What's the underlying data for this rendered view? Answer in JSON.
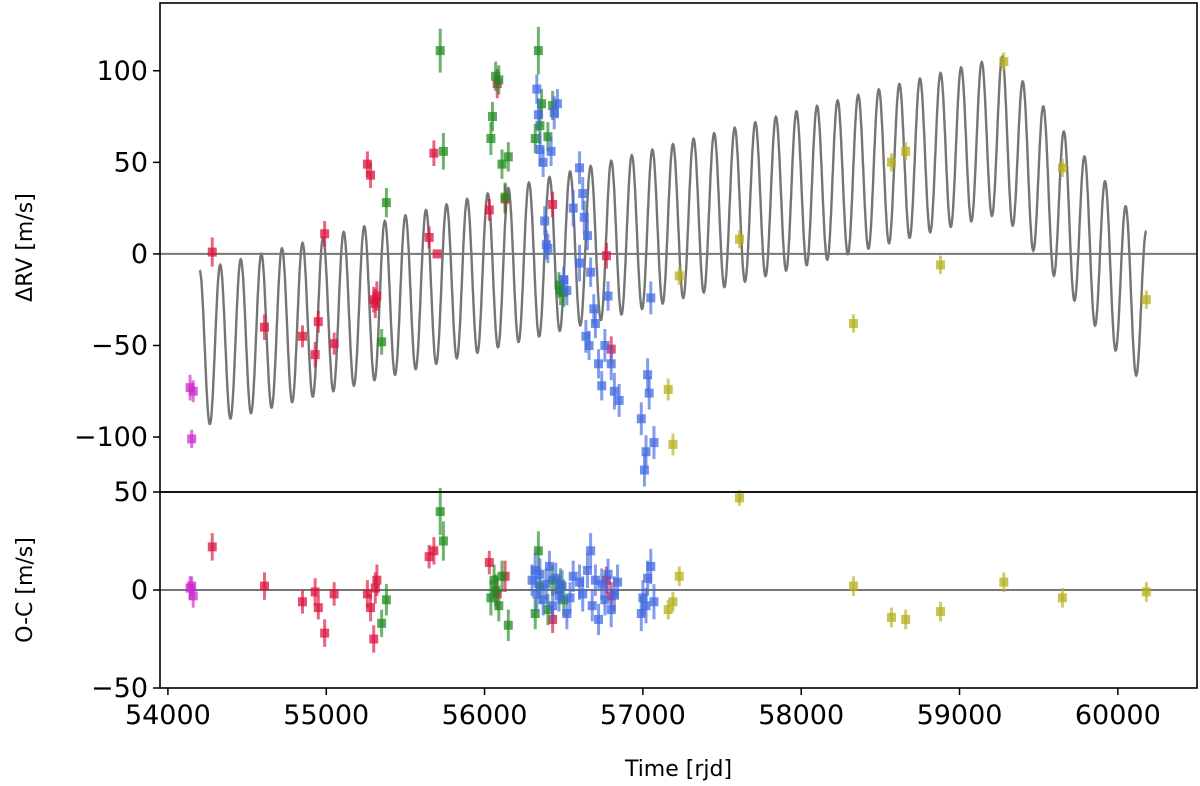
{
  "chart_data": [
    {
      "type": "scatter",
      "panel": "top",
      "ylabel": "ΔRV [m/s]",
      "xlim": [
        53950,
        60500
      ],
      "ylim": [
        -130,
        137
      ],
      "yticks": [
        -100,
        -50,
        0,
        50,
        100
      ],
      "ytick_labels": [
        "−100",
        "−50",
        "0",
        "50",
        "100"
      ],
      "zero_line": 0,
      "model": {
        "name": "",
        "color": "#757575",
        "x_start": 54200,
        "x_end": 60180,
        "short_period_days": 130,
        "long_period_days": 6360,
        "long_phase_peak": 59270,
        "short_amp": 45,
        "long_half_amp": 80
      },
      "series": [
        {
          "color": "#cc2bcc",
          "points": [
            [
              54140,
              -73,
              7
            ],
            [
              54160,
              -75,
              6
            ],
            [
              54150,
              -101,
              5
            ]
          ]
        },
        {
          "color": "#dc143c",
          "points": [
            [
              54280,
              1,
              8
            ],
            [
              54610,
              -40,
              7
            ],
            [
              54850,
              -45,
              6
            ],
            [
              54930,
              -55,
              7
            ],
            [
              54950,
              -37,
              6
            ],
            [
              54990,
              11,
              7
            ],
            [
              55050,
              -49,
              6
            ],
            [
              55260,
              49,
              7
            ],
            [
              55280,
              43,
              7
            ],
            [
              55300,
              -25,
              7
            ],
            [
              55310,
              -27,
              8
            ],
            [
              55320,
              -23,
              8
            ],
            [
              55650,
              9,
              6
            ],
            [
              55680,
              55,
              7
            ],
            [
              55700,
              0,
              0
            ],
            [
              56030,
              24,
              6
            ],
            [
              56080,
              93,
              8
            ],
            [
              56130,
              30,
              8
            ],
            [
              56430,
              27,
              7
            ],
            [
              56770,
              -1,
              7
            ],
            [
              56800,
              -52,
              7
            ]
          ]
        },
        {
          "color": "#228b22",
          "points": [
            [
              55350,
              -48,
              7
            ],
            [
              55380,
              28,
              8
            ],
            [
              55720,
              111,
              12
            ],
            [
              55740,
              56,
              10
            ],
            [
              56040,
              63,
              9
            ],
            [
              56050,
              75,
              8
            ],
            [
              56070,
              97,
              8
            ],
            [
              56090,
              95,
              8
            ],
            [
              56110,
              49,
              8
            ],
            [
              56130,
              31,
              8
            ],
            [
              56150,
              53,
              8
            ],
            [
              56320,
              63,
              8
            ],
            [
              56340,
              111,
              13
            ],
            [
              56350,
              70,
              10
            ],
            [
              56360,
              82,
              8
            ],
            [
              56400,
              64,
              8
            ],
            [
              56430,
              81,
              8
            ],
            [
              56470,
              -17,
              7
            ],
            [
              56480,
              -20,
              8
            ],
            [
              56500,
              -21,
              8
            ]
          ]
        },
        {
          "color": "#4169e1",
          "points": [
            [
              56330,
              90,
              8
            ],
            [
              56340,
              76,
              9
            ],
            [
              56350,
              57,
              9
            ],
            [
              56370,
              50,
              8
            ],
            [
              56380,
              18,
              8
            ],
            [
              56390,
              5,
              8
            ],
            [
              56400,
              3,
              8
            ],
            [
              56420,
              56,
              8
            ],
            [
              56440,
              77,
              9
            ],
            [
              56460,
              82,
              8
            ],
            [
              56500,
              -14,
              7
            ],
            [
              56520,
              -20,
              8
            ],
            [
              56600,
              47,
              9
            ],
            [
              56620,
              33,
              9
            ],
            [
              56630,
              20,
              9
            ],
            [
              56650,
              10,
              8
            ],
            [
              56670,
              -10,
              8
            ],
            [
              56690,
              -30,
              8
            ],
            [
              56700,
              -38,
              8
            ],
            [
              56720,
              -60,
              8
            ],
            [
              56740,
              -72,
              8
            ],
            [
              56760,
              -50,
              9
            ],
            [
              56780,
              -23,
              8
            ],
            [
              56800,
              -60,
              9
            ],
            [
              56820,
              -75,
              10
            ],
            [
              56850,
              -80,
              9
            ],
            [
              56990,
              -90,
              9
            ],
            [
              57010,
              -118,
              9
            ],
            [
              57020,
              -108,
              9
            ],
            [
              57030,
              -66,
              9
            ],
            [
              57040,
              -76,
              9
            ],
            [
              57050,
              -24,
              9
            ],
            [
              57070,
              -103,
              9
            ],
            [
              56560,
              25,
              10
            ],
            [
              56600,
              -5,
              10
            ],
            [
              56640,
              -45,
              9
            ],
            [
              56660,
              -50,
              8
            ]
          ]
        },
        {
          "color": "#b5b21d",
          "points": [
            [
              57160,
              -74,
              6
            ],
            [
              57190,
              -104,
              6
            ],
            [
              57230,
              -12,
              5
            ],
            [
              57610,
              8,
              5
            ],
            [
              58330,
              -38,
              5
            ],
            [
              58570,
              50,
              5
            ],
            [
              58660,
              56,
              5
            ],
            [
              58880,
              -6,
              5
            ],
            [
              59280,
              105,
              5
            ],
            [
              59650,
              47,
              5
            ],
            [
              60180,
              -25,
              5
            ]
          ]
        }
      ]
    },
    {
      "type": "scatter",
      "panel": "bottom",
      "xlabel": "Time [rjd]",
      "ylabel": "O-C [m/s]",
      "xlim": [
        53950,
        60500
      ],
      "ylim": [
        -50,
        50
      ],
      "xticks": [
        54000,
        55000,
        56000,
        57000,
        58000,
        59000,
        60000
      ],
      "xtick_labels": [
        "54000",
        "55000",
        "56000",
        "57000",
        "58000",
        "59000",
        "60000"
      ],
      "yticks": [
        -50,
        0,
        50
      ],
      "ytick_labels": [
        "−50",
        "0",
        "50"
      ],
      "zero_line": 0,
      "series": [
        {
          "color": "#cc2bcc",
          "points": [
            [
              54140,
              1,
              6
            ],
            [
              54160,
              -3,
              6
            ],
            [
              54150,
              2,
              5
            ]
          ]
        },
        {
          "color": "#dc143c",
          "points": [
            [
              54280,
              22,
              7
            ],
            [
              54610,
              2,
              7
            ],
            [
              54850,
              -6,
              6
            ],
            [
              54930,
              -1,
              7
            ],
            [
              54950,
              -9,
              6
            ],
            [
              54990,
              -22,
              7
            ],
            [
              55050,
              -2,
              6
            ],
            [
              55260,
              -2,
              7
            ],
            [
              55280,
              -9,
              7
            ],
            [
              55300,
              -25,
              7
            ],
            [
              55310,
              1,
              8
            ],
            [
              55320,
              5,
              8
            ],
            [
              55650,
              17,
              6
            ],
            [
              55680,
              20,
              7
            ],
            [
              56030,
              14,
              6
            ],
            [
              56080,
              -2,
              8
            ],
            [
              56130,
              7,
              8
            ],
            [
              56430,
              -15,
              7
            ],
            [
              56770,
              5,
              7
            ],
            [
              56800,
              -3,
              7
            ]
          ]
        },
        {
          "color": "#228b22",
          "points": [
            [
              55350,
              -17,
              7
            ],
            [
              55380,
              -5,
              8
            ],
            [
              55720,
              40,
              12
            ],
            [
              55740,
              25,
              10
            ],
            [
              56040,
              -4,
              9
            ],
            [
              56060,
              5,
              8
            ],
            [
              56070,
              0,
              8
            ],
            [
              56090,
              -8,
              8
            ],
            [
              56110,
              7,
              8
            ],
            [
              56150,
              -18,
              8
            ],
            [
              56320,
              -12,
              8
            ],
            [
              56340,
              20,
              10
            ],
            [
              56350,
              2,
              9
            ],
            [
              56400,
              -10,
              8
            ],
            [
              56430,
              5,
              8
            ],
            [
              56470,
              0,
              7
            ],
            [
              56480,
              3,
              8
            ],
            [
              56500,
              -5,
              8
            ]
          ]
        },
        {
          "color": "#4169e1",
          "points": [
            [
              56300,
              5,
              8
            ],
            [
              56320,
              10,
              9
            ],
            [
              56330,
              -2,
              9
            ],
            [
              56350,
              8,
              8
            ],
            [
              56370,
              -5,
              8
            ],
            [
              56390,
              3,
              8
            ],
            [
              56410,
              12,
              8
            ],
            [
              56430,
              -8,
              8
            ],
            [
              56450,
              6,
              8
            ],
            [
              56470,
              -3,
              8
            ],
            [
              56490,
              2,
              8
            ],
            [
              56520,
              -12,
              8
            ],
            [
              56540,
              -4,
              8
            ],
            [
              56560,
              7,
              8
            ],
            [
              56600,
              4,
              9
            ],
            [
              56620,
              -2,
              9
            ],
            [
              56650,
              10,
              9
            ],
            [
              56670,
              20,
              9
            ],
            [
              56680,
              -8,
              8
            ],
            [
              56700,
              5,
              8
            ],
            [
              56720,
              -15,
              8
            ],
            [
              56740,
              3,
              8
            ],
            [
              56760,
              -5,
              8
            ],
            [
              56780,
              8,
              8
            ],
            [
              56800,
              -10,
              9
            ],
            [
              56820,
              -2,
              9
            ],
            [
              56840,
              4,
              9
            ],
            [
              56990,
              -12,
              9
            ],
            [
              57000,
              -4,
              9
            ],
            [
              57020,
              -8,
              9
            ],
            [
              57030,
              6,
              9
            ],
            [
              57050,
              12,
              9
            ],
            [
              57070,
              -6,
              9
            ]
          ]
        },
        {
          "color": "#b5b21d",
          "points": [
            [
              57160,
              -10,
              5
            ],
            [
              57190,
              -6,
              5
            ],
            [
              57230,
              7,
              5
            ],
            [
              57610,
              47,
              4
            ],
            [
              58330,
              2,
              5
            ],
            [
              58570,
              -14,
              5
            ],
            [
              58660,
              -15,
              5
            ],
            [
              58880,
              -11,
              5
            ],
            [
              59280,
              4,
              5
            ],
            [
              59650,
              -4,
              5
            ],
            [
              60180,
              -1,
              5
            ]
          ]
        }
      ]
    }
  ]
}
